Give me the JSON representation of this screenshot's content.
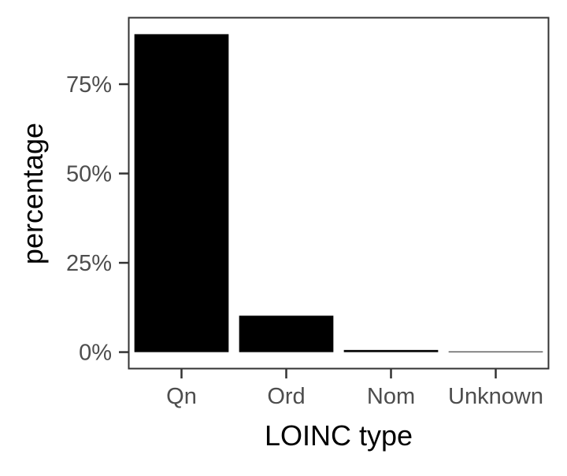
{
  "chart_data": {
    "type": "bar",
    "title": "",
    "xlabel": "LOINC type",
    "ylabel": "percentage",
    "categories": [
      "Qn",
      "Ord",
      "Nom",
      "Unknown"
    ],
    "values": [
      89.0,
      10.2,
      0.6,
      0.2
    ],
    "ylim": [
      -4.5,
      93.5
    ],
    "yticks": [
      0,
      25,
      50,
      75
    ],
    "ytick_labels": [
      "0%",
      "25%",
      "50%",
      "75%"
    ],
    "bar_color": "#000000",
    "panel_border_color": "#333333",
    "grid": false,
    "legend": "none"
  }
}
